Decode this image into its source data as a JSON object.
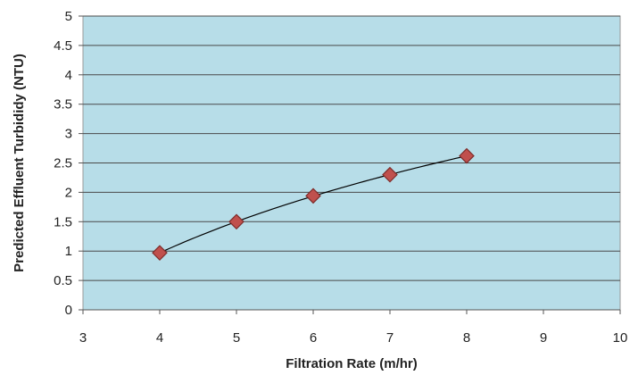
{
  "chart_data": {
    "type": "scatter",
    "title": "",
    "xlabel": "Filtration Rate (m/hr)",
    "ylabel": "Predicted Effluent Turbididy (NTU)",
    "xlim": [
      3,
      10
    ],
    "ylim": [
      0,
      5
    ],
    "x_ticks": [
      "3",
      "4",
      "5",
      "6",
      "7",
      "8",
      "9",
      "10"
    ],
    "y_ticks": [
      "0",
      "0.5",
      "1",
      "1.5",
      "2",
      "2.5",
      "3",
      "3.5",
      "4",
      "4.5",
      "5"
    ],
    "grid": "horizontal",
    "legend": "none",
    "trendline": true,
    "series": [
      {
        "x": [
          4,
          5,
          6,
          7,
          8
        ],
        "y": [
          0.97,
          1.5,
          1.94,
          2.3,
          2.62
        ],
        "marker": "diamond",
        "color": "#c0504d"
      }
    ],
    "colors": {
      "plot_background": "#b7dde8",
      "gridline": "#4a4a4a",
      "marker_fill": "#c0504d",
      "marker_edge": "#7f2d2b",
      "trendline": "#000000"
    }
  }
}
